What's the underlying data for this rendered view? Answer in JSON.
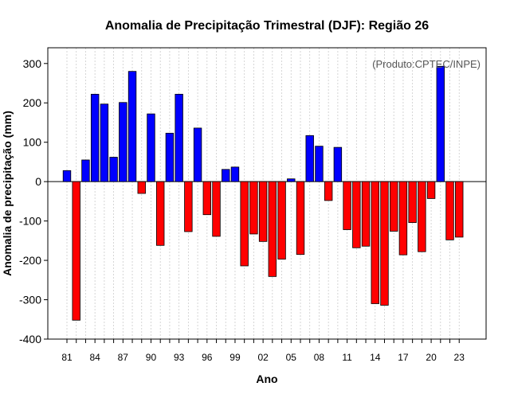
{
  "chart_data": {
    "type": "bar",
    "title": "Anomalia de Precipitação Trimestral (DJF): Região 26",
    "xlabel": "Ano",
    "ylabel": "Anomalia de precipitação (mm)",
    "credit": "(Produto:CPTEC/INPE)",
    "ylim": [
      -400,
      340
    ],
    "yticks": [
      -400,
      -300,
      -200,
      -100,
      0,
      100,
      200,
      300
    ],
    "years": [
      1981,
      1982,
      1983,
      1984,
      1985,
      1986,
      1987,
      1988,
      1989,
      1990,
      1991,
      1992,
      1993,
      1994,
      1995,
      1996,
      1997,
      1998,
      1999,
      2000,
      2001,
      2002,
      2003,
      2004,
      2005,
      2006,
      2007,
      2008,
      2009,
      2010,
      2011,
      2012,
      2013,
      2014,
      2015,
      2016,
      2017,
      2018,
      2019,
      2020,
      2021,
      2022,
      2023
    ],
    "values": [
      28,
      -352,
      55,
      222,
      197,
      62,
      201,
      280,
      -30,
      172,
      -162,
      123,
      222,
      -127,
      136,
      -84,
      -139,
      31,
      37,
      -214,
      -133,
      -152,
      -241,
      -197,
      7,
      -185,
      117,
      90,
      -48,
      87,
      -122,
      -168,
      -164,
      -310,
      -314,
      -126,
      -186,
      -104,
      -178,
      -43,
      293,
      -148,
      -141
    ],
    "xtick_labels": [
      "81",
      "84",
      "87",
      "90",
      "93",
      "96",
      "99",
      "02",
      "05",
      "08",
      "11",
      "14",
      "17",
      "20",
      "23"
    ],
    "xtick_years": [
      1981,
      1984,
      1987,
      1990,
      1993,
      1996,
      1999,
      2002,
      2005,
      2008,
      2011,
      2014,
      2017,
      2020,
      2023
    ],
    "colors": {
      "positive": "#0000ff",
      "negative": "#ff0000",
      "edge": "#000000",
      "grid": "#cccccc"
    }
  }
}
